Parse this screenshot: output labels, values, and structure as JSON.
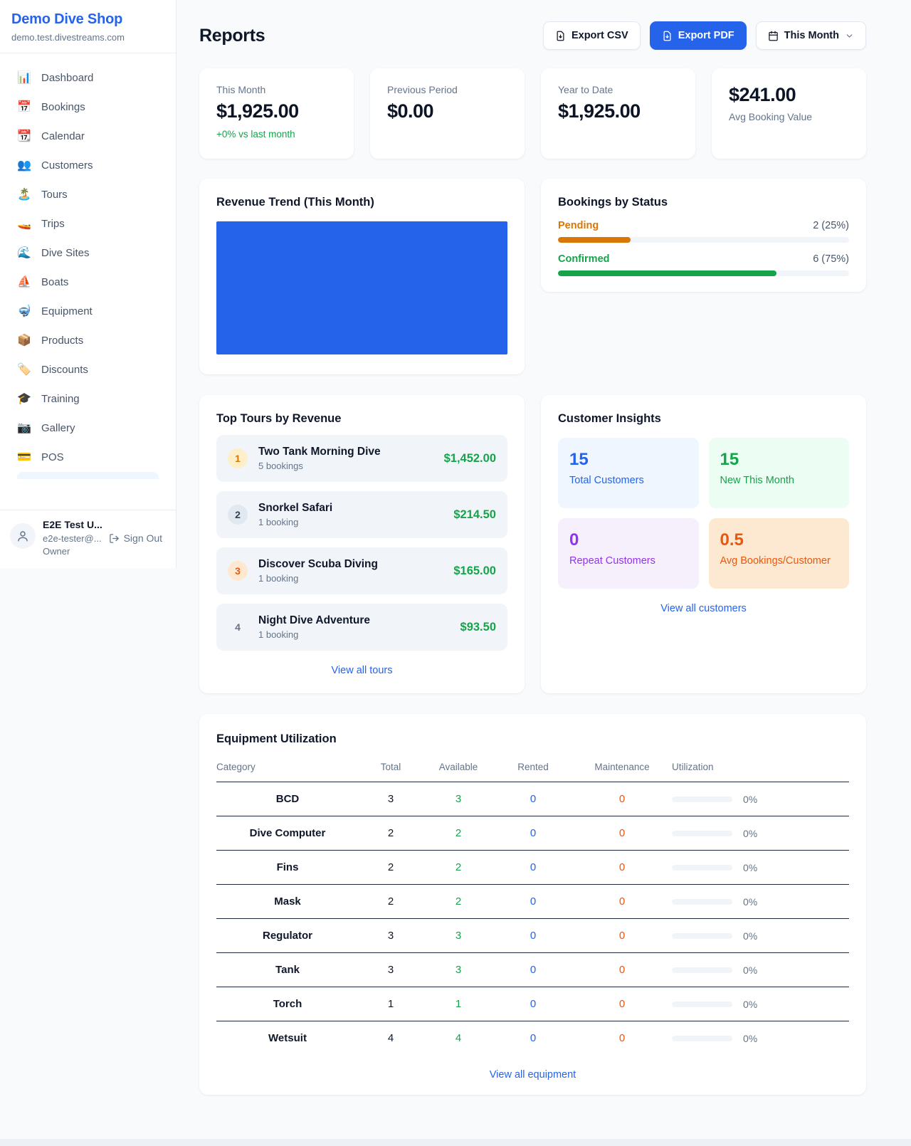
{
  "colors": {
    "brand_blue": "#2563eb",
    "success_green": "#16a34a",
    "pending_orange": "#d97706",
    "deep_orange": "#ea580c",
    "purple": "#9333ea",
    "chart_fill": "#2563eb"
  },
  "sidebar": {
    "brand": "Demo Dive Shop",
    "domain": "demo.test.divestreams.com",
    "items": [
      {
        "icon": "📊",
        "label": "Dashboard"
      },
      {
        "icon": "📅",
        "label": "Bookings"
      },
      {
        "icon": "📆",
        "label": "Calendar"
      },
      {
        "icon": "👥",
        "label": "Customers"
      },
      {
        "icon": "🏝️",
        "label": "Tours"
      },
      {
        "icon": "🚤",
        "label": "Trips"
      },
      {
        "icon": "🌊",
        "label": "Dive Sites"
      },
      {
        "icon": "⛵",
        "label": "Boats"
      },
      {
        "icon": "🤿",
        "label": "Equipment"
      },
      {
        "icon": "📦",
        "label": "Products"
      },
      {
        "icon": "🏷️",
        "label": "Discounts"
      },
      {
        "icon": "🎓",
        "label": "Training"
      },
      {
        "icon": "📷",
        "label": "Gallery"
      },
      {
        "icon": "💳",
        "label": "POS"
      }
    ],
    "user": {
      "name": "E2E Test U...",
      "email": "e2e-tester@...",
      "role": "Owner",
      "sign_out_label": "Sign Out"
    }
  },
  "header": {
    "title": "Reports",
    "export_csv_label": "Export CSV",
    "export_pdf_label": "Export PDF",
    "period_label": "This Month"
  },
  "stats": [
    {
      "label": "This Month",
      "value": "$1,925.00",
      "delta": "+0% vs last month"
    },
    {
      "label": "Previous Period",
      "value": "$0.00"
    },
    {
      "label": "Year to Date",
      "value": "$1,925.00"
    },
    {
      "label": "Avg Booking Value",
      "value": "$241.00"
    }
  ],
  "revenue_trend": {
    "title": "Revenue Trend (This Month)",
    "fill_color": "#2563eb"
  },
  "bookings_by_status": {
    "title": "Bookings by Status",
    "items": [
      {
        "label": "Pending",
        "count": 2,
        "percent": 25,
        "display": "2 (25%)"
      },
      {
        "label": "Confirmed",
        "count": 6,
        "percent": 75,
        "display": "6 (75%)"
      }
    ]
  },
  "top_tours": {
    "title": "Top Tours by Revenue",
    "view_all_label": "View all tours",
    "items": [
      {
        "rank": "1",
        "name": "Two Tank Morning Dive",
        "bookings": "5 bookings",
        "revenue": "$1,452.00"
      },
      {
        "rank": "2",
        "name": "Snorkel Safari",
        "bookings": "1 booking",
        "revenue": "$214.50"
      },
      {
        "rank": "3",
        "name": "Discover Scuba Diving",
        "bookings": "1 booking",
        "revenue": "$165.00"
      },
      {
        "rank": "4",
        "name": "Night Dive Adventure",
        "bookings": "1 booking",
        "revenue": "$93.50"
      }
    ]
  },
  "customer_insights": {
    "title": "Customer Insights",
    "view_all_label": "View all customers",
    "tiles": [
      {
        "value": "15",
        "label": "Total Customers"
      },
      {
        "value": "15",
        "label": "New This Month"
      },
      {
        "value": "0",
        "label": "Repeat Customers"
      },
      {
        "value": "0.5",
        "label": "Avg Bookings/Customer"
      }
    ]
  },
  "equipment": {
    "title": "Equipment Utilization",
    "view_all_label": "View all equipment",
    "columns": [
      "Category",
      "Total",
      "Available",
      "Rented",
      "Maintenance",
      "Utilization"
    ],
    "rows": [
      {
        "category": "BCD",
        "total": "3",
        "available": "3",
        "rented": "0",
        "maintenance": "0",
        "utilization": "0%",
        "utilization_pct": 0
      },
      {
        "category": "Dive Computer",
        "total": "2",
        "available": "2",
        "rented": "0",
        "maintenance": "0",
        "utilization": "0%",
        "utilization_pct": 0
      },
      {
        "category": "Fins",
        "total": "2",
        "available": "2",
        "rented": "0",
        "maintenance": "0",
        "utilization": "0%",
        "utilization_pct": 0
      },
      {
        "category": "Mask",
        "total": "2",
        "available": "2",
        "rented": "0",
        "maintenance": "0",
        "utilization": "0%",
        "utilization_pct": 0
      },
      {
        "category": "Regulator",
        "total": "3",
        "available": "3",
        "rented": "0",
        "maintenance": "0",
        "utilization": "0%",
        "utilization_pct": 0
      },
      {
        "category": "Tank",
        "total": "3",
        "available": "3",
        "rented": "0",
        "maintenance": "0",
        "utilization": "0%",
        "utilization_pct": 0
      },
      {
        "category": "Torch",
        "total": "1",
        "available": "1",
        "rented": "0",
        "maintenance": "0",
        "utilization": "0%",
        "utilization_pct": 0
      },
      {
        "category": "Wetsuit",
        "total": "4",
        "available": "4",
        "rented": "0",
        "maintenance": "0",
        "utilization": "0%",
        "utilization_pct": 0
      }
    ]
  }
}
